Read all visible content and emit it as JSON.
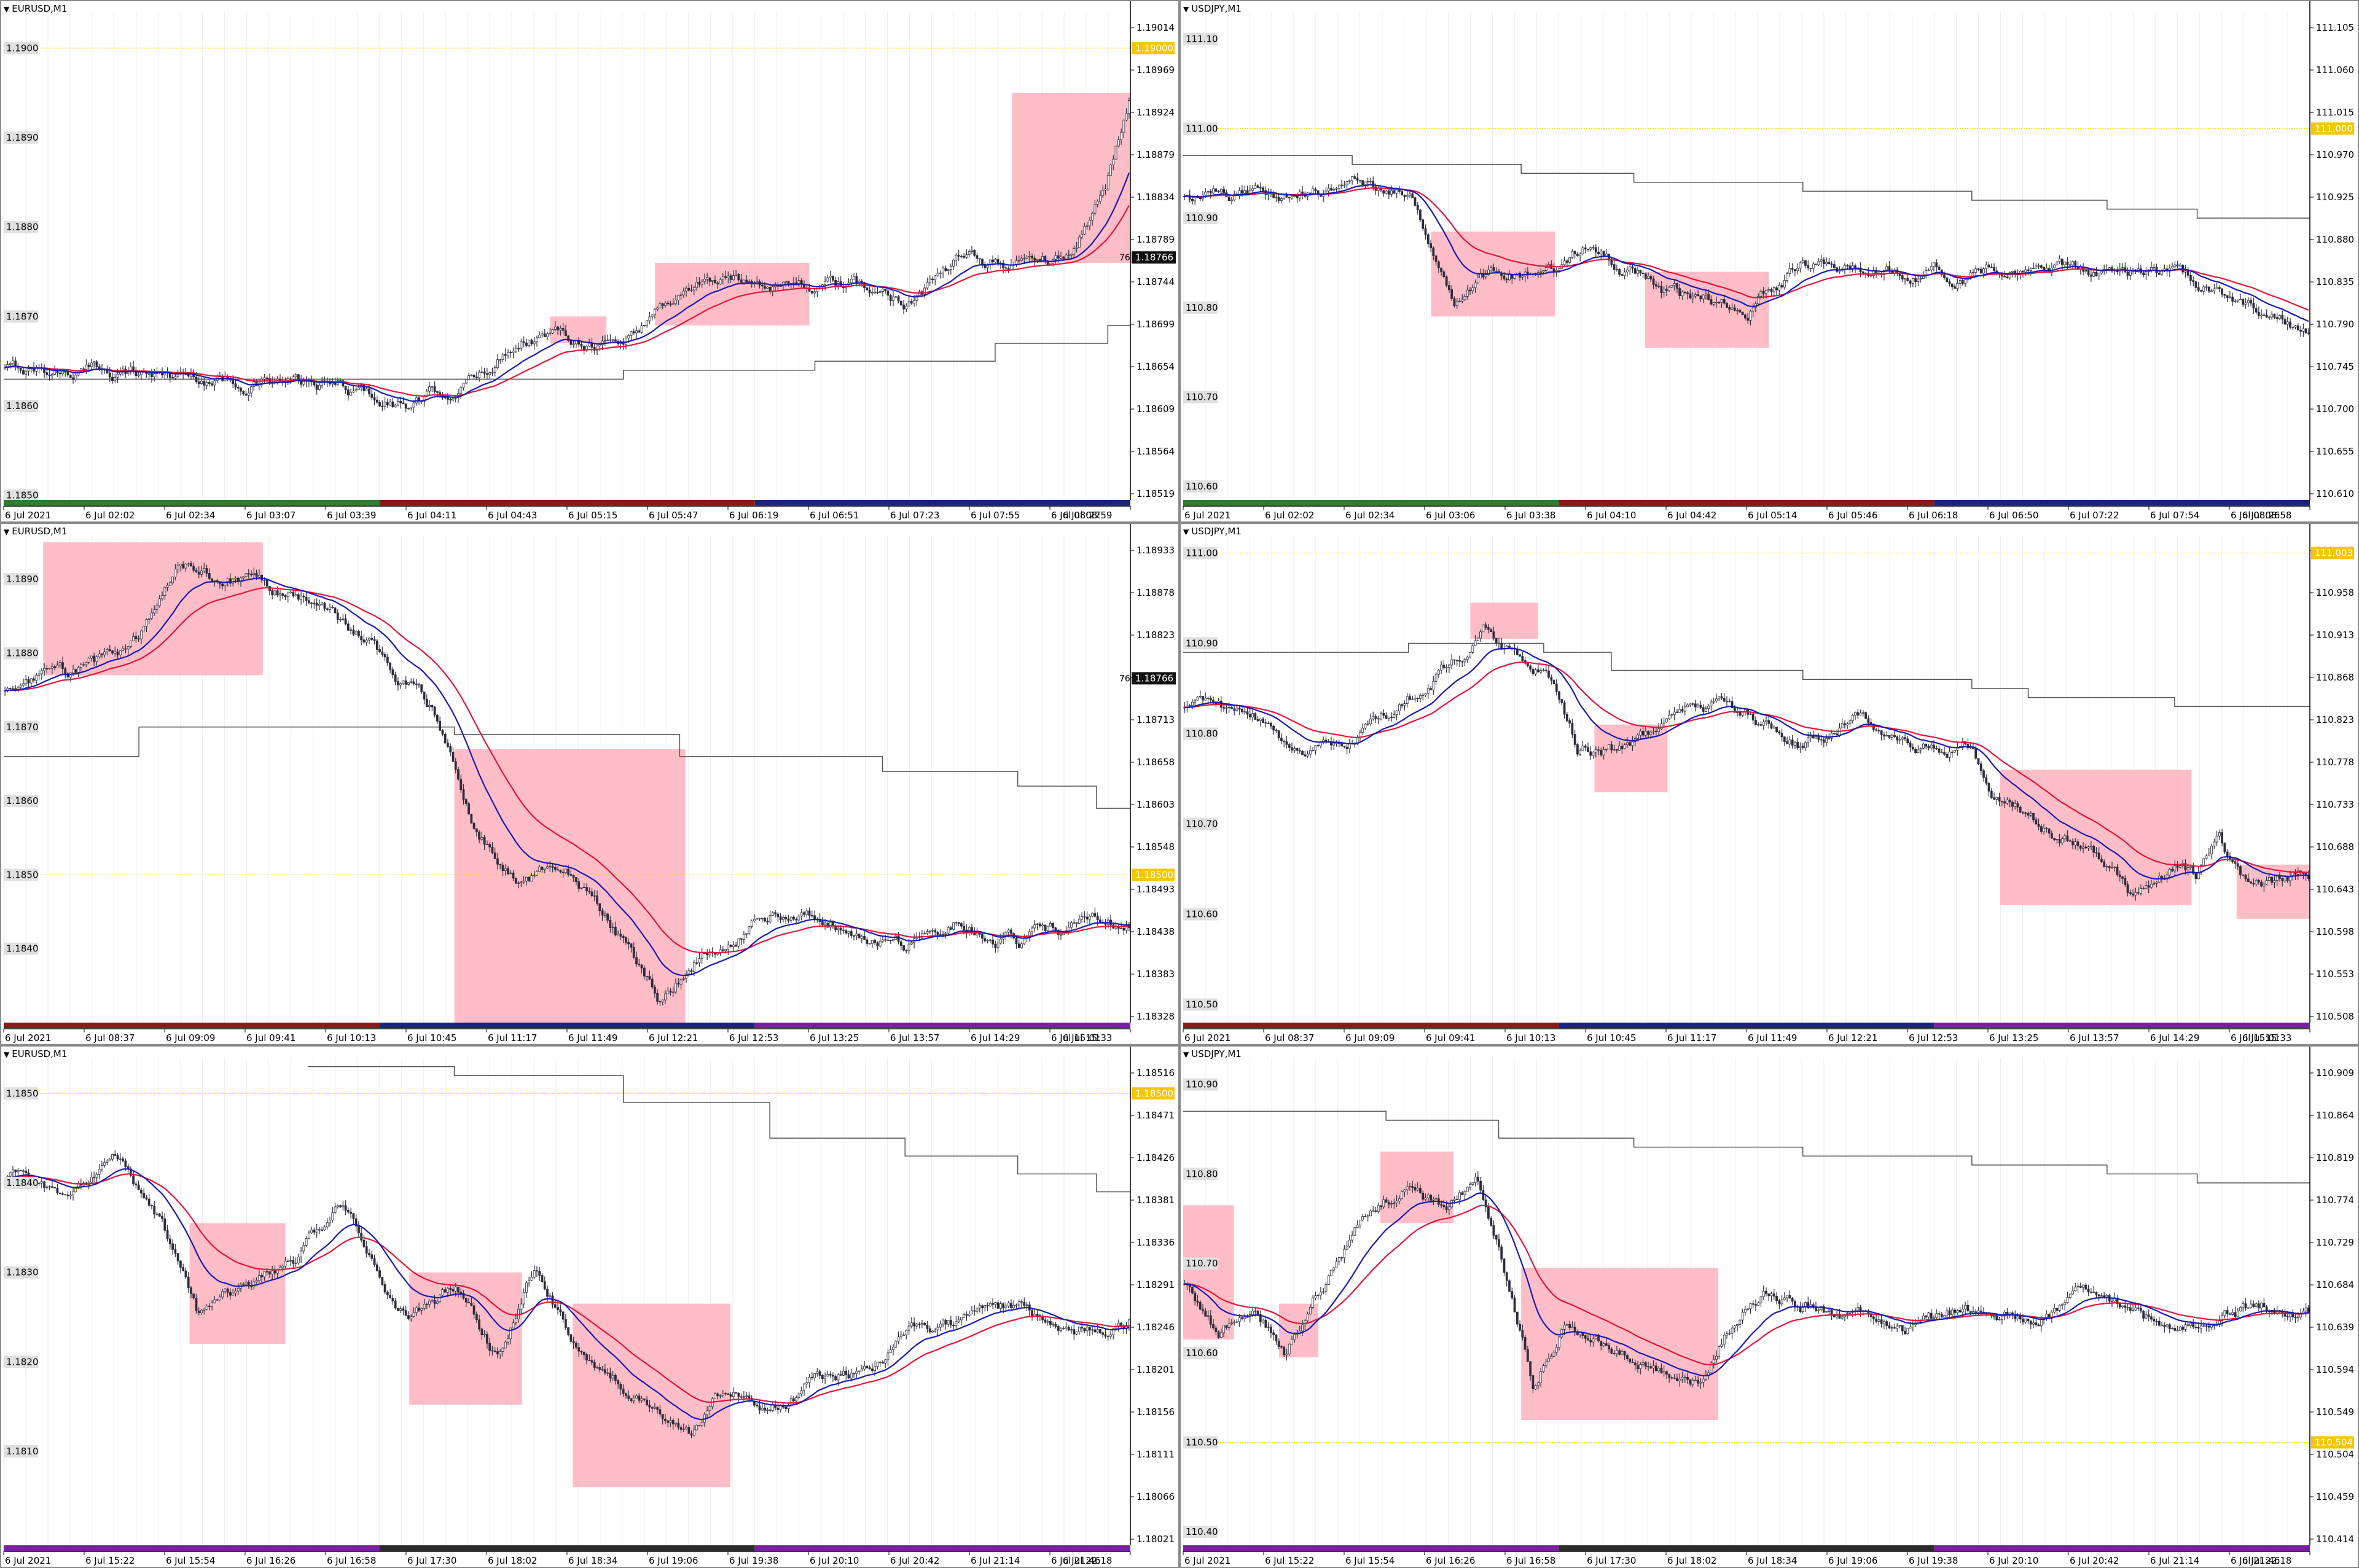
{
  "charts": [
    {
      "title": "EURUSD,M1",
      "left_prices": [
        "1.1900",
        "1.1890",
        "1.1880",
        "1.1870",
        "1.1860",
        "1.1850"
      ],
      "right_prices": [
        "1.19014",
        "1.18969",
        "1.18924",
        "1.18879",
        "1.18834",
        "1.18789",
        "1.18744",
        "1.18699",
        "1.18654",
        "1.18609",
        "1.18564",
        "1.18519"
      ],
      "price_range": [
        1.18495,
        1.1904
      ],
      "current_price": "1.18766",
      "current_price_prefix": "76",
      "level_label": "1.19000",
      "level_price": 1.19,
      "time_labels": [
        "6 Jul 2021",
        "6 Jul 02:02",
        "6 Jul 02:34",
        "6 Jul 03:07",
        "6 Jul 03:39",
        "6 Jul 04:11",
        "6 Jul 04:43",
        "6 Jul 05:15",
        "6 Jul 05:47",
        "6 Jul 06:19",
        "6 Jul 06:51",
        "6 Jul 07:23",
        "6 Jul 07:55",
        "6 Jul 08:27",
        "6 Jul 08:59"
      ],
      "session_colors": [
        "#2e7d32",
        "#8b1a1a",
        "#1a237e"
      ],
      "boxes_price": [
        [
          1.187,
          1.1867
        ],
        [
          1.1876,
          1.1869
        ],
        [
          1.1895,
          1.1876
        ]
      ],
      "boxes_time": [
        [
          0.485,
          0.535
        ],
        [
          0.578,
          0.715
        ],
        [
          0.895,
          1.0
        ]
      ],
      "path": [
        [
          0,
          1.1864
        ],
        [
          0.1,
          1.1864
        ],
        [
          0.2,
          1.1863
        ],
        [
          0.3,
          1.1862
        ],
        [
          0.36,
          1.186
        ],
        [
          0.42,
          1.1863
        ],
        [
          0.46,
          1.1868
        ],
        [
          0.5,
          1.1868
        ],
        [
          0.55,
          1.1867
        ],
        [
          0.58,
          1.1871
        ],
        [
          0.62,
          1.1874
        ],
        [
          0.7,
          1.1874
        ],
        [
          0.76,
          1.1873
        ],
        [
          0.8,
          1.1872
        ],
        [
          0.85,
          1.1876
        ],
        [
          0.9,
          1.1876
        ],
        [
          0.95,
          1.1877
        ],
        [
          0.98,
          1.1885
        ],
        [
          1.0,
          1.1895
        ]
      ],
      "sma_lag": 0.04,
      "gray_steps": [
        [
          0,
          1.1863
        ],
        [
          0.45,
          1.1863
        ],
        [
          0.55,
          1.1864
        ],
        [
          0.72,
          1.1865
        ],
        [
          0.88,
          1.1867
        ],
        [
          0.98,
          1.1869
        ]
      ]
    },
    {
      "title": "USDJPY,M1",
      "left_prices": [
        "111.10",
        "111.00",
        "110.90",
        "110.80",
        "110.70",
        "110.60"
      ],
      "right_prices": [
        "111.105",
        "111.060",
        "111.015",
        "110.970",
        "110.925",
        "110.880",
        "110.835",
        "110.790",
        "110.745",
        "110.700",
        "110.655",
        "110.610"
      ],
      "price_range": [
        110.585,
        111.13
      ],
      "level_label": "111.000",
      "level_price": 111.0,
      "time_labels": [
        "6 Jul 2021",
        "6 Jul 02:02",
        "6 Jul 02:34",
        "6 Jul 03:06",
        "6 Jul 03:38",
        "6 Jul 04:10",
        "6 Jul 04:42",
        "6 Jul 05:14",
        "6 Jul 05:46",
        "6 Jul 06:18",
        "6 Jul 06:50",
        "6 Jul 07:22",
        "6 Jul 07:54",
        "6 Jul 08:26",
        "6 Jul 08:58"
      ],
      "session_colors": [
        "#2e7d32",
        "#8b1a1a",
        "#1a237e"
      ],
      "boxes_price": [
        [
          110.885,
          110.79
        ],
        [
          110.84,
          110.755
        ]
      ],
      "boxes_time": [
        [
          0.22,
          0.33
        ],
        [
          0.41,
          0.52
        ]
      ],
      "path": [
        [
          0,
          110.92
        ],
        [
          0.08,
          110.93
        ],
        [
          0.15,
          110.94
        ],
        [
          0.2,
          110.93
        ],
        [
          0.24,
          110.82
        ],
        [
          0.28,
          110.84
        ],
        [
          0.32,
          110.83
        ],
        [
          0.36,
          110.87
        ],
        [
          0.4,
          110.84
        ],
        [
          0.44,
          110.81
        ],
        [
          0.5,
          110.8
        ],
        [
          0.55,
          110.85
        ],
        [
          0.62,
          110.84
        ],
        [
          0.7,
          110.84
        ],
        [
          0.8,
          110.84
        ],
        [
          0.88,
          110.83
        ],
        [
          0.94,
          110.81
        ],
        [
          1.0,
          110.77
        ]
      ],
      "sma_lag": 0.05,
      "gray_steps": [
        [
          0,
          110.97
        ],
        [
          0.15,
          110.96
        ],
        [
          0.3,
          110.95
        ],
        [
          0.4,
          110.94
        ],
        [
          0.55,
          110.93
        ],
        [
          0.7,
          110.92
        ],
        [
          0.82,
          110.91
        ],
        [
          0.9,
          110.9
        ]
      ]
    },
    {
      "title": "EURUSD,M1",
      "left_prices": [
        "1.1890",
        "1.1880",
        "1.1870",
        "1.1860",
        "1.1850",
        "1.1840"
      ],
      "right_prices": [
        "1.18933",
        "1.18878",
        "1.18823",
        "1.18768",
        "1.18713",
        "1.18658",
        "1.18603",
        "1.18548",
        "1.18493",
        "1.18438",
        "1.18383",
        "1.18328"
      ],
      "price_range": [
        1.183,
        1.1896
      ],
      "current_price": "1.18766",
      "current_price_prefix": "76",
      "level_label": "1.18500",
      "level_price": 1.185,
      "time_labels": [
        "6 Jul 2021",
        "6 Jul 08:37",
        "6 Jul 09:09",
        "6 Jul 09:41",
        "6 Jul 10:13",
        "6 Jul 10:45",
        "6 Jul 11:17",
        "6 Jul 11:49",
        "6 Jul 12:21",
        "6 Jul 12:53",
        "6 Jul 13:25",
        "6 Jul 13:57",
        "6 Jul 14:29",
        "6 Jul 15:01",
        "6 Jul 15:33"
      ],
      "session_colors": [
        "#8b1a1a",
        "#1a237e",
        "#7b1fa2"
      ],
      "boxes_price": [
        [
          1.1895,
          1.1877
        ],
        [
          1.1867,
          1.183
        ]
      ],
      "boxes_time": [
        [
          0.035,
          0.23
        ],
        [
          0.4,
          0.605
        ]
      ],
      "path": [
        [
          0,
          1.1875
        ],
        [
          0.08,
          1.1878
        ],
        [
          0.12,
          1.1882
        ],
        [
          0.15,
          1.1892
        ],
        [
          0.2,
          1.189
        ],
        [
          0.26,
          1.1888
        ],
        [
          0.32,
          1.1882
        ],
        [
          0.38,
          1.1872
        ],
        [
          0.42,
          1.1855
        ],
        [
          0.46,
          1.1849
        ],
        [
          0.5,
          1.1851
        ],
        [
          0.54,
          1.1843
        ],
        [
          0.58,
          1.1833
        ],
        [
          0.62,
          1.184
        ],
        [
          0.68,
          1.1845
        ],
        [
          0.74,
          1.1844
        ],
        [
          0.8,
          1.1841
        ],
        [
          0.85,
          1.1844
        ],
        [
          0.9,
          1.1841
        ],
        [
          1.0,
          1.1844
        ]
      ],
      "sma_lag": 0.1,
      "gray_steps": [
        [
          0,
          1.1866
        ],
        [
          0.12,
          1.187
        ],
        [
          0.4,
          1.1869
        ],
        [
          0.6,
          1.1866
        ],
        [
          0.78,
          1.1864
        ],
        [
          0.9,
          1.1862
        ],
        [
          0.97,
          1.1859
        ]
      ]
    },
    {
      "title": "USDJPY,M1",
      "left_prices": [
        "111.00",
        "110.90",
        "110.80",
        "110.70",
        "110.60",
        "110.50"
      ],
      "right_prices": [
        "111.003",
        "110.958",
        "110.913",
        "110.868",
        "110.823",
        "110.778",
        "110.733",
        "110.688",
        "110.643",
        "110.598",
        "110.553",
        "110.508"
      ],
      "price_range": [
        110.48,
        111.02
      ],
      "level_label": "111.003",
      "level_price": 111.0,
      "time_labels": [
        "6 Jul 2021",
        "6 Jul 08:37",
        "6 Jul 09:09",
        "6 Jul 09:41",
        "6 Jul 10:13",
        "6 Jul 10:45",
        "6 Jul 11:17",
        "6 Jul 11:49",
        "6 Jul 12:21",
        "6 Jul 12:53",
        "6 Jul 13:25",
        "6 Jul 13:57",
        "6 Jul 14:29",
        "6 Jul 15:01",
        "6 Jul 15:33"
      ],
      "session_colors": [
        "#8b1a1a",
        "#1a237e",
        "#7b1fa2"
      ],
      "boxes_price": [
        [
          110.945,
          110.905
        ],
        [
          110.81,
          110.735
        ],
        [
          110.76,
          110.61
        ],
        [
          110.655,
          110.595
        ]
      ],
      "boxes_time": [
        [
          0.255,
          0.315
        ],
        [
          0.365,
          0.43
        ],
        [
          0.725,
          0.895
        ],
        [
          0.935,
          1.0
        ]
      ],
      "path": [
        [
          0,
          110.83
        ],
        [
          0.06,
          110.82
        ],
        [
          0.1,
          110.78
        ],
        [
          0.14,
          110.79
        ],
        [
          0.18,
          110.82
        ],
        [
          0.22,
          110.86
        ],
        [
          0.27,
          110.92
        ],
        [
          0.3,
          110.88
        ],
        [
          0.32,
          110.87
        ],
        [
          0.35,
          110.78
        ],
        [
          0.38,
          110.78
        ],
        [
          0.42,
          110.8
        ],
        [
          0.45,
          110.84
        ],
        [
          0.5,
          110.82
        ],
        [
          0.55,
          110.79
        ],
        [
          0.6,
          110.82
        ],
        [
          0.65,
          110.78
        ],
        [
          0.7,
          110.79
        ],
        [
          0.72,
          110.74
        ],
        [
          0.76,
          110.7
        ],
        [
          0.8,
          110.68
        ],
        [
          0.84,
          110.62
        ],
        [
          0.88,
          110.65
        ],
        [
          0.9,
          110.64
        ],
        [
          0.92,
          110.68
        ],
        [
          0.95,
          110.62
        ],
        [
          1.0,
          110.64
        ]
      ],
      "sma_lag": 0.05,
      "gray_steps": [
        [
          0,
          110.89
        ],
        [
          0.2,
          110.9
        ],
        [
          0.32,
          110.89
        ],
        [
          0.38,
          110.87
        ],
        [
          0.55,
          110.86
        ],
        [
          0.7,
          110.85
        ],
        [
          0.75,
          110.84
        ],
        [
          0.8,
          110.84
        ],
        [
          0.88,
          110.83
        ],
        [
          1.0,
          110.83
        ]
      ]
    },
    {
      "title": "EURUSD,M1",
      "left_prices": [
        "1.1850",
        "1.1840",
        "1.1830",
        "1.1820",
        "1.1810"
      ],
      "right_prices": [
        "1.18516",
        "1.18471",
        "1.18426",
        "1.18381",
        "1.18336",
        "1.18291",
        "1.18246",
        "1.18201",
        "1.18156",
        "1.18111",
        "1.18066",
        "1.18021"
      ],
      "price_range": [
        1.17995,
        1.1854
      ],
      "level_label": "1.18500",
      "level_price": 1.185,
      "time_labels": [
        "6 Jul 2021",
        "6 Jul 15:22",
        "6 Jul 15:54",
        "6 Jul 16:26",
        "6 Jul 16:58",
        "6 Jul 17:30",
        "6 Jul 18:02",
        "6 Jul 18:34",
        "6 Jul 19:06",
        "6 Jul 19:38",
        "6 Jul 20:10",
        "6 Jul 20:42",
        "6 Jul 21:14",
        "6 Jul 21:46",
        "6 Jul 22:18"
      ],
      "session_colors": [
        "#7b1fa2",
        "#2b2b2b",
        "#7b1fa2"
      ],
      "boxes_price": [
        [
          1.18355,
          1.1822
        ],
        [
          1.183,
          1.18152
        ],
        [
          1.18265,
          1.1806
        ]
      ],
      "boxes_time": [
        [
          0.165,
          0.25
        ],
        [
          0.36,
          0.46
        ],
        [
          0.505,
          0.645
        ]
      ],
      "path": [
        [
          0,
          1.1841
        ],
        [
          0.05,
          1.1838
        ],
        [
          0.1,
          1.1843
        ],
        [
          0.14,
          1.1835
        ],
        [
          0.17,
          1.1825
        ],
        [
          0.22,
          1.1829
        ],
        [
          0.26,
          1.1831
        ],
        [
          0.3,
          1.1838
        ],
        [
          0.33,
          1.183
        ],
        [
          0.36,
          1.1825
        ],
        [
          0.4,
          1.1828
        ],
        [
          0.44,
          1.182
        ],
        [
          0.47,
          1.183
        ],
        [
          0.52,
          1.182
        ],
        [
          0.57,
          1.1816
        ],
        [
          0.61,
          1.1812
        ],
        [
          0.64,
          1.1817
        ],
        [
          0.68,
          1.1815
        ],
        [
          0.72,
          1.1818
        ],
        [
          0.76,
          1.1819
        ],
        [
          0.8,
          1.1823
        ],
        [
          0.85,
          1.1824
        ],
        [
          0.9,
          1.1826
        ],
        [
          0.95,
          1.1823
        ],
        [
          1.0,
          1.1825
        ]
      ],
      "sma_lag": 0.05,
      "gray_steps": [
        [
          0.27,
          1.1853
        ],
        [
          0.4,
          1.1852
        ],
        [
          0.55,
          1.1849
        ],
        [
          0.68,
          1.1845
        ],
        [
          0.8,
          1.1843
        ],
        [
          0.9,
          1.1841
        ],
        [
          0.97,
          1.1839
        ]
      ]
    },
    {
      "title": "USDJPY,M1",
      "left_prices": [
        "110.90",
        "110.80",
        "110.70",
        "110.60",
        "110.50",
        "110.40"
      ],
      "right_prices": [
        "110.909",
        "110.864",
        "110.819",
        "110.774",
        "110.729",
        "110.684",
        "110.639",
        "110.594",
        "110.549",
        "110.504",
        "110.459",
        "110.414"
      ],
      "price_range": [
        110.385,
        110.93
      ],
      "level_label": "110.504",
      "level_price": 110.5,
      "time_labels": [
        "6 Jul 2021",
        "6 Jul 15:22",
        "6 Jul 15:54",
        "6 Jul 16:26",
        "6 Jul 16:58",
        "6 Jul 17:30",
        "6 Jul 18:02",
        "6 Jul 18:34",
        "6 Jul 19:06",
        "6 Jul 19:38",
        "6 Jul 20:10",
        "6 Jul 20:42",
        "6 Jul 21:14",
        "6 Jul 21:46",
        "6 Jul 22:18"
      ],
      "session_colors": [
        "#7b1fa2",
        "#2b2b2b",
        "#7b1fa2"
      ],
      "boxes_price": [
        [
          110.765,
          110.615
        ],
        [
          110.655,
          110.595
        ],
        [
          110.825,
          110.745
        ],
        [
          110.695,
          110.525
        ]
      ],
      "boxes_time": [
        [
          0.0,
          0.045
        ],
        [
          0.085,
          0.12
        ],
        [
          0.175,
          0.24
        ],
        [
          0.3,
          0.475
        ]
      ],
      "path": [
        [
          0,
          110.68
        ],
        [
          0.03,
          110.62
        ],
        [
          0.06,
          110.66
        ],
        [
          0.09,
          110.6
        ],
        [
          0.12,
          110.67
        ],
        [
          0.16,
          110.75
        ],
        [
          0.2,
          110.79
        ],
        [
          0.23,
          110.76
        ],
        [
          0.26,
          110.79
        ],
        [
          0.28,
          110.72
        ],
        [
          0.31,
          110.57
        ],
        [
          0.34,
          110.64
        ],
        [
          0.38,
          110.61
        ],
        [
          0.42,
          110.58
        ],
        [
          0.46,
          110.57
        ],
        [
          0.49,
          110.64
        ],
        [
          0.52,
          110.67
        ],
        [
          0.56,
          110.65
        ],
        [
          0.6,
          110.64
        ],
        [
          0.64,
          110.62
        ],
        [
          0.68,
          110.64
        ],
        [
          0.72,
          110.65
        ],
        [
          0.76,
          110.64
        ],
        [
          0.8,
          110.66
        ],
        [
          0.84,
          110.65
        ],
        [
          0.88,
          110.62
        ],
        [
          0.92,
          110.64
        ],
        [
          0.96,
          110.65
        ],
        [
          1.0,
          110.65
        ]
      ],
      "sma_lag": 0.06,
      "gray_steps": [
        [
          0,
          110.87
        ],
        [
          0.18,
          110.86
        ],
        [
          0.28,
          110.84
        ],
        [
          0.4,
          110.83
        ],
        [
          0.55,
          110.82
        ],
        [
          0.7,
          110.81
        ],
        [
          0.82,
          110.8
        ],
        [
          0.9,
          110.79
        ],
        [
          1.0,
          110.79
        ]
      ]
    }
  ],
  "colors": {
    "ema": "#e5143c",
    "sma": "#1919b4",
    "box": "#ffb6c1",
    "steps": "#555555",
    "candles": "#2d2d3c",
    "level_line": "#f0d200",
    "price_tag": "#f7c600"
  }
}
